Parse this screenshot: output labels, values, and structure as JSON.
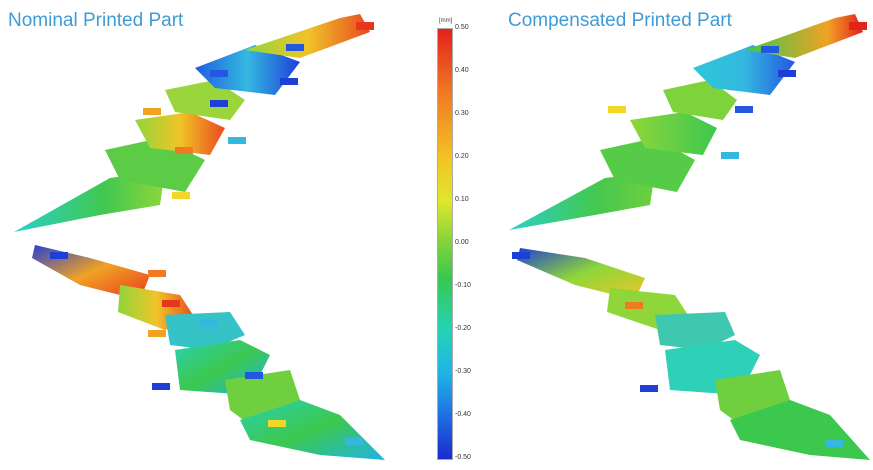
{
  "titles": {
    "left": "Nominal Printed Part",
    "right": "Compensated Printed Part"
  },
  "colorbar": {
    "unit": "[mm]",
    "ticks": [
      "0.50",
      "0.40",
      "0.30",
      "0.20",
      "0.10",
      "0.00",
      "-0.10",
      "-0.20",
      "-0.30",
      "-0.40",
      "-0.50"
    ],
    "colors": {
      "max": "#e3221c",
      "high": "#f3c324",
      "zero": "#37c84f",
      "low": "#1fb4e6",
      "min": "#1a2bd0"
    }
  }
}
